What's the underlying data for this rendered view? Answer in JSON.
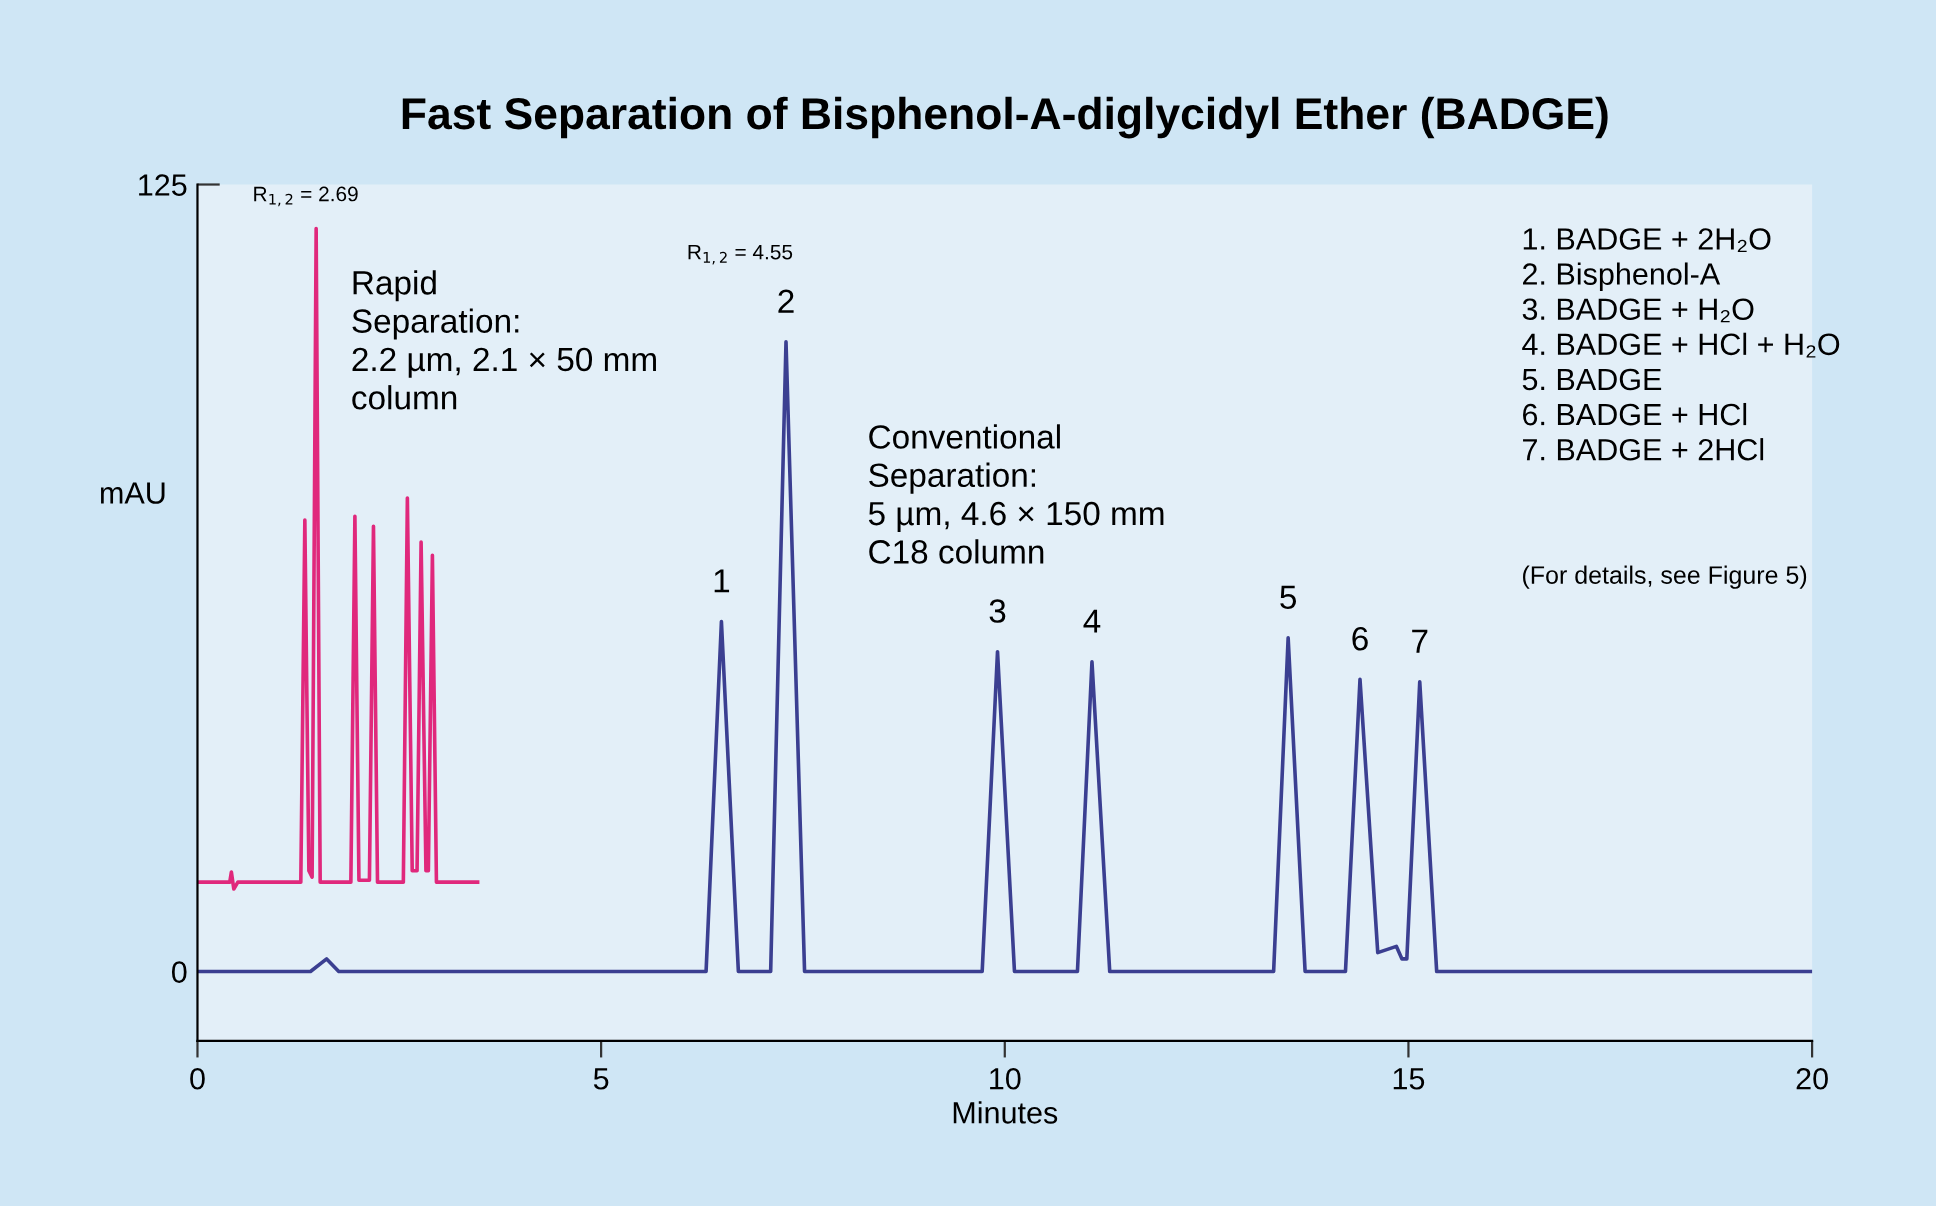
{
  "chart_data": {
    "type": "line",
    "title": "Fast Separation of Bisphenol-A-diglycidyl Ether (BADGE)",
    "xlabel": "Minutes",
    "ylabel": "mAU",
    "xlim": [
      0,
      20
    ],
    "xticks": [
      0,
      5,
      10,
      15,
      20
    ],
    "ylim": [
      -11,
      125
    ],
    "yticks": [
      0,
      125
    ],
    "grid": false,
    "legend": false,
    "marker": "none",
    "line_style": "solid",
    "series": [
      {
        "color": "#e0287c",
        "x": [
          0.02,
          0.4,
          0.42,
          0.45,
          0.5,
          1.28,
          1.33,
          1.38,
          1.42,
          1.47,
          1.52,
          1.9,
          1.95,
          2.0,
          2.13,
          2.18,
          2.23,
          2.55,
          2.6,
          2.66,
          2.72,
          2.77,
          2.83,
          2.86,
          2.91,
          2.96,
          3.47
        ],
        "values": [
          14.2,
          14.2,
          15.8,
          13.1,
          14.2,
          14.2,
          71.7,
          16,
          15,
          118,
          14.2,
          14.2,
          72.3,
          14.5,
          14.5,
          70.7,
          14.2,
          14.2,
          75.2,
          16,
          16,
          68.2,
          16,
          16,
          66.1,
          14.2,
          14.2
        ]
      },
      {
        "color": "#3b3f91",
        "x": [
          0,
          1.4,
          1.6,
          1.75,
          6.3,
          6.49,
          6.7,
          7.1,
          7.29,
          7.52,
          9.72,
          9.91,
          10.12,
          10.9,
          11.08,
          11.3,
          13.33,
          13.51,
          13.72,
          14.22,
          14.4,
          14.62,
          14.85,
          14.92,
          14.98,
          15.14,
          15.35,
          20
        ],
        "values": [
          0,
          0,
          2,
          0,
          0,
          55.6,
          0,
          0,
          100,
          0,
          0,
          50.8,
          0,
          0,
          49.2,
          0,
          0,
          53,
          0,
          0,
          46.4,
          3,
          4,
          2,
          2,
          46,
          0,
          0
        ]
      }
    ],
    "annotations": [
      "R$_{1,2}$ = 2.69",
      "R$_{1,2}$ = 4.55",
      {
        "text": "1",
        "x": 6.49,
        "y": 55.6
      },
      {
        "text": "2",
        "x": 7.29,
        "y": 100
      },
      {
        "text": "3",
        "x": 9.91,
        "y": 50.8
      },
      {
        "text": "4",
        "x": 11.08,
        "y": 49.2
      },
      {
        "text": "5",
        "x": 13.51,
        "y": 53
      },
      {
        "text": "6",
        "x": 14.4,
        "y": 46.4
      },
      {
        "text": "7",
        "x": 15.14,
        "y": 46
      },
      "Rapid\nSeparation:\n2.2 µm, 2.1 × 50 mm\ncolumn",
      "Conventional\nSeparation:\n5 µm, 4.6 × 150 mm\nC18 column",
      "1. BADGE + 2H₂O\n2. Bisphenol-A\n3. BADGE + H₂O\n4. BADGE + HCl + H₂O\n5. BADGE\n6. BADGE + HCl\n7. BADGE + 2HCl",
      "(For details, see Figure 5)"
    ]
  }
}
